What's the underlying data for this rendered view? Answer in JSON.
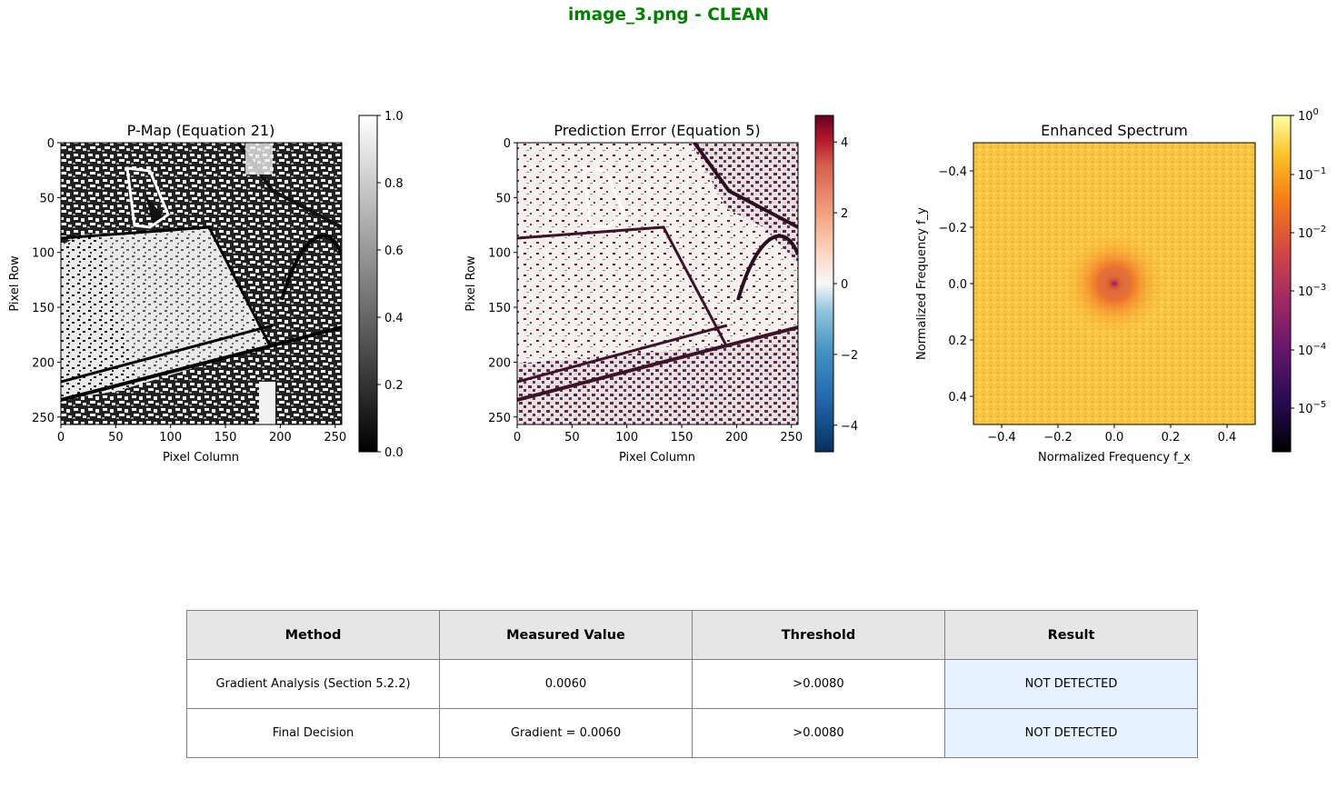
{
  "suptitle": "image_3.png - CLEAN",
  "colors": {
    "suptitle": "#008000",
    "result_bg": "#e6f2ff",
    "header_bg": "#e6e6e6",
    "border": "#808080"
  },
  "panels": [
    {
      "title": "P-Map (Equation 21)",
      "xlabel": "Pixel Column",
      "ylabel": "Pixel Row",
      "xticks": [
        "0",
        "50",
        "100",
        "150",
        "200",
        "250"
      ],
      "yticks": [
        "0",
        "50",
        "100",
        "150",
        "200",
        "250"
      ],
      "colorbar": {
        "ticks": [
          "0.0",
          "0.2",
          "0.4",
          "0.6",
          "0.8",
          "1.0"
        ],
        "range": [
          0,
          1
        ],
        "cmap": "gray"
      }
    },
    {
      "title": "Prediction Error (Equation 5)",
      "xlabel": "Pixel Column",
      "ylabel": "Pixel Row",
      "xticks": [
        "0",
        "50",
        "100",
        "150",
        "200",
        "250"
      ],
      "yticks": [
        "0",
        "50",
        "100",
        "150",
        "200",
        "250"
      ],
      "colorbar": {
        "ticks": [
          "−4",
          "−2",
          "0",
          "2",
          "4"
        ],
        "range": [
          -4.75,
          4.75
        ],
        "cmap": "RdBu_r"
      }
    },
    {
      "title": "Enhanced Spectrum",
      "xlabel": "Normalized Frequency f_x",
      "ylabel": "Normalized Frequency f_y",
      "xticks": [
        "−0.4",
        "−0.2",
        "0.0",
        "0.2",
        "0.4"
      ],
      "yticks": [
        "−0.4",
        "−0.2",
        "0.0",
        "0.2",
        "0.4"
      ],
      "colorbar": {
        "tick_exponents": [
          "0",
          "−1",
          "−2",
          "−3",
          "−4",
          "−5"
        ],
        "base": "10",
        "cmap": "inferno",
        "scale": "log"
      }
    }
  ],
  "table": {
    "headers": [
      "Method",
      "Measured Value",
      "Threshold",
      "Result"
    ],
    "rows": [
      [
        "Gradient Analysis (Section 5.2.2)",
        "0.0060",
        ">0.0080",
        "NOT DETECTED"
      ],
      [
        "Final Decision",
        "Gradient = 0.0060",
        ">0.0080",
        "NOT DETECTED"
      ]
    ]
  },
  "chart_data": [
    {
      "type": "heatmap",
      "title": "P-Map (Equation 21)",
      "xlabel": "Pixel Column",
      "ylabel": "Pixel Row",
      "xlim": [
        0,
        256
      ],
      "ylim": [
        256,
        0
      ],
      "colorbar_range": [
        0,
        1
      ],
      "colormap": "gray"
    },
    {
      "type": "heatmap",
      "title": "Prediction Error (Equation 5)",
      "xlabel": "Pixel Column",
      "ylabel": "Pixel Row",
      "xlim": [
        0,
        256
      ],
      "ylim": [
        256,
        0
      ],
      "colorbar_range": [
        -4.75,
        4.75
      ],
      "colormap": "RdBu_r"
    },
    {
      "type": "heatmap",
      "title": "Enhanced Spectrum",
      "xlabel": "Normalized Frequency f_x",
      "ylabel": "Normalized Frequency f_y",
      "xlim": [
        -0.5,
        0.5
      ],
      "ylim": [
        0.5,
        -0.5
      ],
      "colorbar_range": [
        1.78e-06,
        1
      ],
      "colorbar_scale": "log",
      "colormap": "inferno"
    },
    {
      "type": "table",
      "columns": [
        "Method",
        "Measured Value",
        "Threshold",
        "Result"
      ],
      "rows": [
        [
          "Gradient Analysis (Section 5.2.2)",
          "0.0060",
          ">0.0080",
          "NOT DETECTED"
        ],
        [
          "Final Decision",
          "Gradient = 0.0060",
          ">0.0080",
          "NOT DETECTED"
        ]
      ]
    }
  ]
}
